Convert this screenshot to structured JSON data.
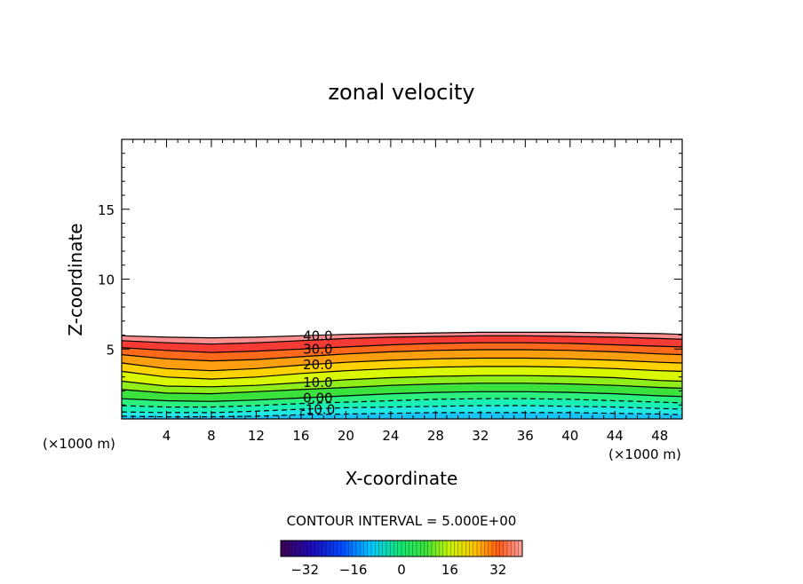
{
  "chart_data": {
    "type": "heatmap",
    "subtype": "filled-contour",
    "title": "zonal velocity",
    "xlabel": "X-coordinate",
    "ylabel": "Z-coordinate",
    "x_unit_left": "(×1000 m)",
    "x_unit_right": "(×1000 m)",
    "xlim": [
      0,
      50
    ],
    "ylim": [
      0,
      20
    ],
    "x_ticks": [
      4,
      8,
      12,
      16,
      20,
      24,
      28,
      32,
      36,
      40,
      44,
      48
    ],
    "y_ticks": [
      5,
      10,
      15
    ],
    "contour_interval_label": "CONTOUR INTERVAL = 5.000E+00",
    "contour_interval": 5,
    "colorbar": {
      "min": -40,
      "max": 40,
      "ticks": [
        -32,
        -16,
        0,
        16,
        32
      ]
    },
    "x_profile": [
      0,
      4,
      8,
      12,
      16,
      20,
      24,
      28,
      32,
      36,
      40,
      44,
      48,
      50
    ],
    "contours": [
      {
        "level": 40,
        "label": "",
        "style": "solid",
        "z": [
          5.95,
          5.85,
          5.8,
          5.85,
          5.95,
          6.05,
          6.1,
          6.15,
          6.2,
          6.2,
          6.2,
          6.15,
          6.1,
          6.05
        ]
      },
      {
        "level": 35,
        "label": "",
        "style": "solid",
        "z": [
          5.6,
          5.45,
          5.35,
          5.45,
          5.6,
          5.75,
          5.85,
          5.9,
          5.95,
          5.95,
          5.9,
          5.85,
          5.75,
          5.7
        ]
      },
      {
        "level": 30,
        "label": "30.0",
        "style": "solid",
        "z": [
          5.1,
          4.9,
          4.75,
          4.85,
          5.0,
          5.15,
          5.3,
          5.4,
          5.45,
          5.45,
          5.4,
          5.3,
          5.2,
          5.15
        ]
      },
      {
        "level": 25,
        "label": "",
        "style": "solid",
        "z": [
          4.6,
          4.3,
          4.15,
          4.25,
          4.45,
          4.65,
          4.8,
          4.9,
          4.95,
          4.95,
          4.9,
          4.8,
          4.65,
          4.6
        ]
      },
      {
        "level": 20,
        "label": "20.0",
        "style": "solid",
        "z": [
          4.0,
          3.6,
          3.45,
          3.6,
          3.85,
          4.05,
          4.2,
          4.3,
          4.35,
          4.35,
          4.3,
          4.2,
          4.05,
          4.0
        ]
      },
      {
        "level": 15,
        "label": "",
        "style": "solid",
        "z": [
          3.4,
          3.0,
          2.85,
          3.0,
          3.25,
          3.45,
          3.6,
          3.7,
          3.75,
          3.75,
          3.7,
          3.6,
          3.45,
          3.4
        ]
      },
      {
        "level": 10,
        "label": "10.0",
        "style": "solid",
        "z": [
          2.7,
          2.35,
          2.3,
          2.4,
          2.6,
          2.8,
          2.95,
          3.05,
          3.1,
          3.1,
          3.05,
          2.95,
          2.75,
          2.7
        ]
      },
      {
        "level": 5,
        "label": "",
        "style": "solid",
        "z": [
          2.1,
          1.85,
          1.8,
          1.95,
          2.1,
          2.25,
          2.4,
          2.5,
          2.55,
          2.55,
          2.5,
          2.4,
          2.25,
          2.2
        ]
      },
      {
        "level": 0,
        "label": "0.00",
        "style": "solid",
        "z": [
          1.45,
          1.3,
          1.25,
          1.35,
          1.5,
          1.65,
          1.8,
          1.9,
          1.95,
          1.95,
          1.9,
          1.8,
          1.65,
          1.6
        ]
      },
      {
        "level": -5,
        "label": "",
        "style": "dashed",
        "z": [
          0.95,
          0.85,
          0.85,
          0.95,
          1.1,
          1.2,
          1.3,
          1.4,
          1.45,
          1.45,
          1.4,
          1.3,
          1.2,
          1.15
        ]
      },
      {
        "level": -10,
        "label": "-10.0",
        "style": "dashed",
        "z": [
          0.5,
          0.45,
          0.45,
          0.55,
          0.7,
          0.8,
          0.85,
          0.9,
          0.95,
          0.95,
          0.9,
          0.85,
          0.75,
          0.7
        ]
      },
      {
        "level": -15,
        "label": "",
        "style": "dashed",
        "z": [
          0.2,
          0.15,
          0.15,
          0.2,
          0.3,
          0.35,
          0.4,
          0.45,
          0.45,
          0.45,
          0.45,
          0.4,
          0.35,
          0.3
        ]
      }
    ],
    "colors": {
      "background": "#ffffff",
      "above_top": "#ffffff",
      "40": "#ff8f8f",
      "35": "#f53b33",
      "30": "#ff6a1a",
      "25": "#ff9f10",
      "20": "#ffd200",
      "15": "#d9f700",
      "10": "#8fee1a",
      "5": "#3ce23c",
      "0": "#2cf07e",
      "-5": "#19f0b4",
      "-10": "#22e8e4",
      "-15": "#20d8f5",
      "below": "#16c4f7"
    }
  }
}
